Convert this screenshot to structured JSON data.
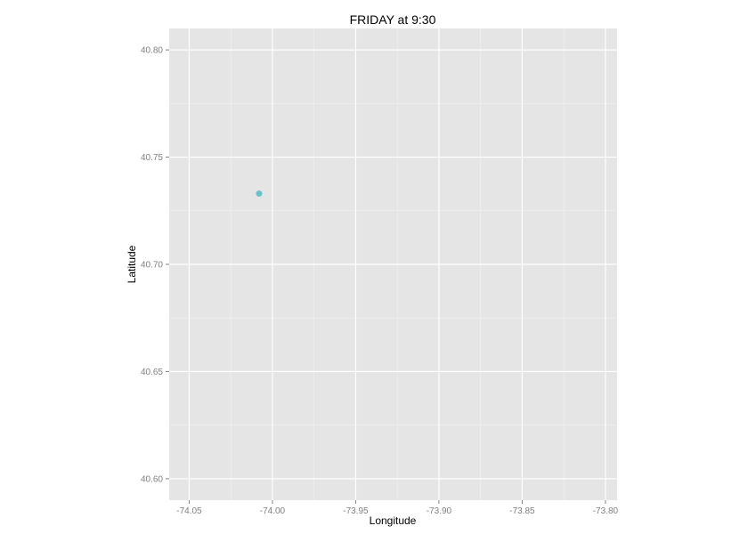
{
  "chart_data": {
    "type": "scatter",
    "title": "FRIDAY at 9:30",
    "xlabel": "Longitude",
    "ylabel": "Latitude",
    "xlim": [
      -74.062,
      -73.793
    ],
    "ylim": [
      40.59,
      40.81
    ],
    "x_ticks": [
      -74.05,
      -74.0,
      -73.95,
      -73.9,
      -73.85,
      -73.8
    ],
    "x_tick_labels": [
      "-74.05",
      "-74.00",
      "-73.95",
      "-73.90",
      "-73.85",
      "-73.80"
    ],
    "y_ticks": [
      40.6,
      40.65,
      40.7,
      40.75,
      40.8
    ],
    "y_tick_labels": [
      "40.60",
      "40.65",
      "40.70",
      "40.75",
      "40.80"
    ],
    "grid": true,
    "points": [
      {
        "x": -74.008,
        "y": 40.733,
        "color": "#66c2cc"
      }
    ]
  }
}
